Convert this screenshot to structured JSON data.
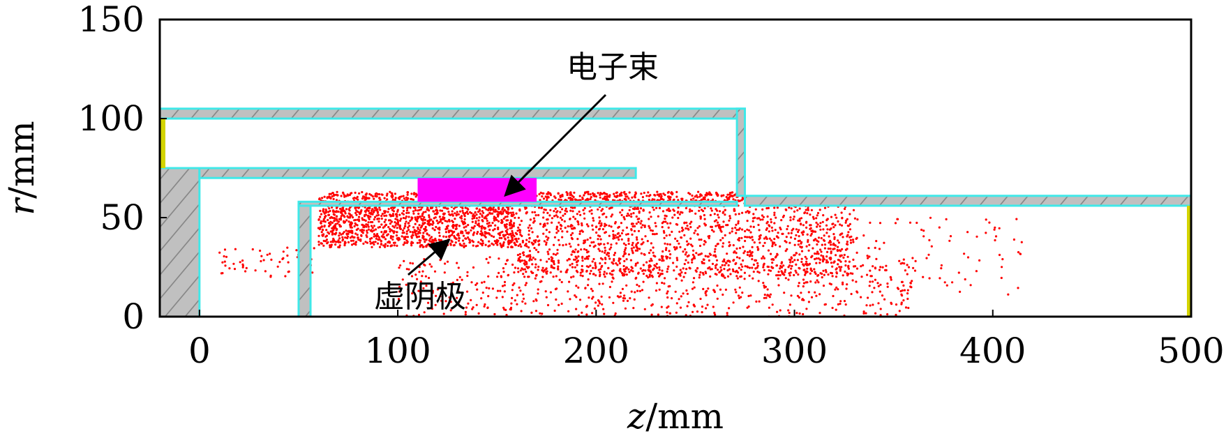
{
  "chart_data": {
    "type": "scatter",
    "xlabel": "z/mm",
    "ylabel": "r/mm",
    "xlim": [
      -20,
      500
    ],
    "ylim": [
      0,
      150
    ],
    "xticks": [
      0,
      100,
      200,
      300,
      400,
      500
    ],
    "yticks": [
      0,
      50,
      100,
      150
    ],
    "grid": false,
    "legend": "none",
    "colors": {
      "wall_fill": "#c0c0c0",
      "wall_edge": "#40e8e8",
      "particles": "#ff0000",
      "beam": "#ff00ff",
      "port": "#d4d400"
    },
    "structures": [
      {
        "name": "outer-tube",
        "z": [
          -20,
          275
        ],
        "r": [
          100,
          105
        ]
      },
      {
        "name": "outer-end-wall",
        "z": [
          271,
          275
        ],
        "r": [
          61,
          105
        ]
      },
      {
        "name": "drift-tube-wall",
        "z": [
          275,
          500
        ],
        "r": [
          56,
          61
        ]
      },
      {
        "name": "cathode-stalk",
        "z": [
          -20,
          0
        ],
        "r": [
          0,
          75
        ]
      },
      {
        "name": "cathode-upper-wall",
        "z": [
          0,
          220
        ],
        "r": [
          70,
          75
        ]
      },
      {
        "name": "anode-post",
        "z": [
          50,
          56
        ],
        "r": [
          0,
          56
        ]
      },
      {
        "name": "anode-wall",
        "z": [
          50,
          271
        ],
        "r": [
          56,
          58
        ]
      }
    ],
    "beam_region": {
      "z": [
        110,
        170
      ],
      "r": [
        58,
        70
      ]
    },
    "particle_regions": [
      {
        "z": [
          60,
          275
        ],
        "r": [
          56,
          63
        ],
        "density": "high"
      },
      {
        "z": [
          60,
          160
        ],
        "r": [
          35,
          56
        ],
        "density": "high"
      },
      {
        "z": [
          160,
          330
        ],
        "r": [
          20,
          56
        ],
        "density": "medium"
      },
      {
        "z": [
          10,
          60
        ],
        "r": [
          20,
          35
        ],
        "density": "low"
      },
      {
        "z": [
          100,
          360
        ],
        "r": [
          0,
          30
        ],
        "density": "low"
      },
      {
        "z": [
          300,
          415
        ],
        "r": [
          10,
          50
        ],
        "density": "sparse"
      }
    ],
    "annotations": [
      {
        "text": "电子束",
        "target": [
          155,
          62
        ]
      },
      {
        "text": "虚阴极",
        "target": [
          125,
          38
        ]
      }
    ]
  }
}
